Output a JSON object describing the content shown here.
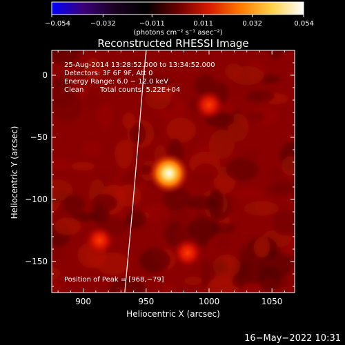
{
  "colorbar": {
    "min": -0.054,
    "max": 0.054,
    "tick_labels": [
      "−0.054",
      "−0.032",
      "−0.011",
      "0.011",
      "0.032",
      "0.054"
    ],
    "tick_values": [
      -0.054,
      -0.032,
      -0.011,
      0.011,
      0.032,
      0.054
    ],
    "colors": [
      "#0000ff",
      "#3a0078",
      "#1a0020",
      "#000000",
      "#6a0000",
      "#d81a00",
      "#ff7a00",
      "#ffd24a",
      "#ffffff"
    ],
    "unit_label": "(photons cm⁻² s⁻¹ asec⁻²)"
  },
  "chart_data": {
    "type": "heatmap",
    "title": "Reconstructed RHESSI Image",
    "xlabel": "Heliocentric X (arcsec)",
    "ylabel": "Heliocentric Y (arcsec)",
    "xlim": [
      875,
      1068
    ],
    "ylim": [
      -175,
      20
    ],
    "xticks": [
      900,
      950,
      1000,
      1050
    ],
    "yticks": [
      0,
      -50,
      -100,
      -150
    ],
    "xtick_labels": [
      "900",
      "950",
      "1000",
      "1050"
    ],
    "ytick_labels": [
      "0",
      "−50",
      "−100",
      "−150"
    ],
    "peak": [
      968,
      -79
    ],
    "sources": [
      {
        "x": 968,
        "y": -79,
        "intensity": 1.0
      },
      {
        "x": 1000,
        "y": -24,
        "intensity": 0.35
      },
      {
        "x": 913,
        "y": -133,
        "intensity": 0.3
      },
      {
        "x": 983,
        "y": -143,
        "intensity": 0.32
      }
    ],
    "limb_curve": [
      [
        933,
        -175
      ],
      [
        939,
        -110
      ],
      [
        944,
        -50
      ],
      [
        948,
        0
      ],
      [
        950,
        20
      ]
    ],
    "background_color": "#8a0000",
    "annotations": {
      "time": "25-Aug-2014 13:28:52.000 to 13:34:52.000",
      "detectors": "Detectors: 3F 6F 9F, Att 0",
      "energy": "Energy Range: 6.0 − 12.0 keV",
      "method": "Clean",
      "counts": "Total counts: 5.22E+04",
      "peak_position": "Position of Peak = [968,−79]"
    }
  },
  "footer": {
    "timestamp": "16−May−2022 10:31"
  }
}
